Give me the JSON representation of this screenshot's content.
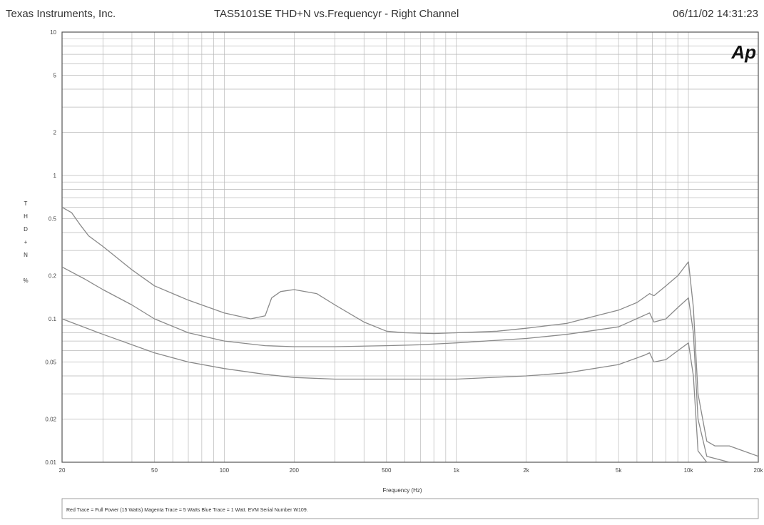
{
  "header": {
    "company": "Texas Instruments, Inc.",
    "title": "TAS5101SE   THD+N vs.Frequencyr - Right Channel",
    "timestamp": "06/11/02 14:31:23"
  },
  "logo": "Ap",
  "footer_note": "Red Trace = Full Power (15 Watts)  Magenta Trace = 5 Watts   Blue Trace = 1 Watt.    EVM Serial Number W109.",
  "colors": {
    "grid": "#b9b9b9",
    "trace": "#8a8a8a",
    "frame": "#555555"
  },
  "chart_data": {
    "type": "line",
    "title": "TAS5101SE   THD+N vs.Frequencyr - Right Channel",
    "xlabel": "Frequency (Hz)",
    "ylabel": "THD+N %",
    "x_scale": "log",
    "y_scale": "log",
    "xlim": [
      20,
      20000
    ],
    "ylim": [
      0.01,
      10
    ],
    "grid": true,
    "x_ticks": [
      {
        "v": 20,
        "label": "20"
      },
      {
        "v": 50,
        "label": "50"
      },
      {
        "v": 100,
        "label": "100"
      },
      {
        "v": 200,
        "label": "200"
      },
      {
        "v": 500,
        "label": "500"
      },
      {
        "v": 1000,
        "label": "1k"
      },
      {
        "v": 2000,
        "label": "2k"
      },
      {
        "v": 5000,
        "label": "5k"
      },
      {
        "v": 10000,
        "label": "10k"
      },
      {
        "v": 20000,
        "label": "20k"
      }
    ],
    "y_ticks": [
      {
        "v": 0.01,
        "label": "0.01"
      },
      {
        "v": 0.02,
        "label": "0.02"
      },
      {
        "v": 0.05,
        "label": "0.05"
      },
      {
        "v": 0.1,
        "label": "0.1"
      },
      {
        "v": 0.2,
        "label": "0.2"
      },
      {
        "v": 0.5,
        "label": "0.5"
      },
      {
        "v": 1,
        "label": "1"
      },
      {
        "v": 2,
        "label": "2"
      },
      {
        "v": 5,
        "label": "5"
      },
      {
        "v": 10,
        "label": "10"
      }
    ],
    "series": [
      {
        "x": [
          20,
          22,
          24,
          26,
          30,
          40,
          50,
          70,
          100,
          130,
          150,
          160,
          175,
          200,
          250,
          300,
          400,
          500,
          600,
          800,
          1000,
          1500,
          2000,
          3000,
          4000,
          5000,
          6000,
          6800,
          7100,
          8000,
          9000,
          10000,
          10500,
          11000,
          12000,
          13000,
          15000,
          20000
        ],
        "y": [
          0.6,
          0.55,
          0.45,
          0.38,
          0.32,
          0.22,
          0.17,
          0.135,
          0.11,
          0.1,
          0.105,
          0.14,
          0.155,
          0.16,
          0.15,
          0.125,
          0.095,
          0.082,
          0.08,
          0.079,
          0.08,
          0.082,
          0.086,
          0.093,
          0.105,
          0.115,
          0.13,
          0.15,
          0.145,
          0.17,
          0.2,
          0.25,
          0.12,
          0.03,
          0.014,
          0.013,
          0.013,
          0.011
        ]
      },
      {
        "x": [
          20,
          25,
          30,
          40,
          50,
          70,
          100,
          150,
          200,
          300,
          500,
          700,
          1000,
          2000,
          3000,
          5000,
          6800,
          7100,
          8000,
          9000,
          10000,
          10500,
          11000,
          12000,
          15000,
          20000
        ],
        "y": [
          0.23,
          0.19,
          0.16,
          0.125,
          0.1,
          0.08,
          0.07,
          0.065,
          0.064,
          0.064,
          0.065,
          0.066,
          0.068,
          0.073,
          0.078,
          0.088,
          0.11,
          0.095,
          0.1,
          0.12,
          0.14,
          0.08,
          0.02,
          0.011,
          0.01,
          0.01
        ]
      },
      {
        "x": [
          20,
          30,
          50,
          70,
          100,
          150,
          200,
          300,
          500,
          700,
          1000,
          2000,
          3000,
          5000,
          6500,
          6800,
          7100,
          8000,
          9000,
          10000,
          10500,
          11000,
          12000,
          20000
        ],
        "y": [
          0.1,
          0.078,
          0.058,
          0.05,
          0.045,
          0.041,
          0.039,
          0.038,
          0.038,
          0.038,
          0.038,
          0.04,
          0.042,
          0.048,
          0.056,
          0.058,
          0.05,
          0.052,
          0.06,
          0.068,
          0.04,
          0.012,
          0.01,
          0.01
        ]
      }
    ]
  }
}
